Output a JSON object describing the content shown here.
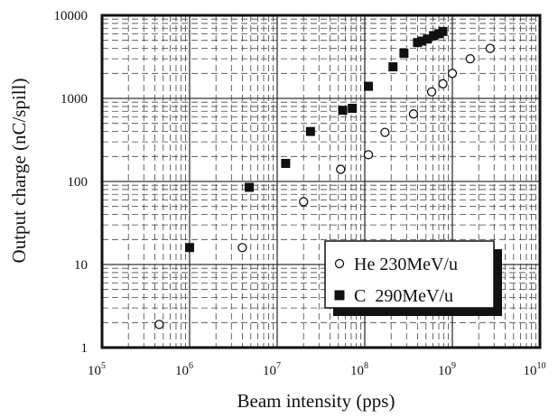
{
  "chart_data": {
    "type": "scatter",
    "title": "",
    "xlabel": "Beam intensity (pps)",
    "ylabel": "Output charge (nC/spill)",
    "x_scale": "log",
    "y_scale": "log",
    "xlim": [
      100000,
      10000000000
    ],
    "ylim": [
      1,
      10000
    ],
    "grid": true,
    "legend_position": "bottom-right",
    "x_tick_labels": [
      {
        "base": "10",
        "exp": "5"
      },
      {
        "base": "10",
        "exp": "6"
      },
      {
        "base": "10",
        "exp": "7"
      },
      {
        "base": "10",
        "exp": "8"
      },
      {
        "base": "10",
        "exp": "9"
      },
      {
        "base": "10",
        "exp": "10"
      }
    ],
    "y_tick_labels": [
      "1",
      "10",
      "100",
      "1000",
      "10000"
    ],
    "series": [
      {
        "name": "He 230MeV/u",
        "marker": "open-circle",
        "color": "#111111",
        "points": [
          {
            "x": 450000,
            "y": 1.9
          },
          {
            "x": 4000000,
            "y": 16
          },
          {
            "x": 20000000,
            "y": 57
          },
          {
            "x": 53000000,
            "y": 140
          },
          {
            "x": 110000000,
            "y": 210
          },
          {
            "x": 170000000,
            "y": 390
          },
          {
            "x": 360000000,
            "y": 650
          },
          {
            "x": 580000000,
            "y": 1200
          },
          {
            "x": 780000000,
            "y": 1500
          },
          {
            "x": 1000000000,
            "y": 2000
          },
          {
            "x": 1600000000,
            "y": 3000
          },
          {
            "x": 2700000000,
            "y": 4000
          }
        ]
      },
      {
        "name": "C  290MeV/u",
        "marker": "filled-square",
        "color": "#111111",
        "points": [
          {
            "x": 1000000,
            "y": 16
          },
          {
            "x": 4800000,
            "y": 85
          },
          {
            "x": 12500000,
            "y": 165
          },
          {
            "x": 24000000,
            "y": 400
          },
          {
            "x": 56000000,
            "y": 720
          },
          {
            "x": 72000000,
            "y": 760
          },
          {
            "x": 110000000,
            "y": 1400
          },
          {
            "x": 210000000,
            "y": 2400
          },
          {
            "x": 280000000,
            "y": 3500
          },
          {
            "x": 400000000,
            "y": 4700
          },
          {
            "x": 450000000,
            "y": 4900
          },
          {
            "x": 520000000,
            "y": 5200
          },
          {
            "x": 610000000,
            "y": 5700
          },
          {
            "x": 700000000,
            "y": 6000
          },
          {
            "x": 780000000,
            "y": 6400
          }
        ]
      }
    ]
  }
}
